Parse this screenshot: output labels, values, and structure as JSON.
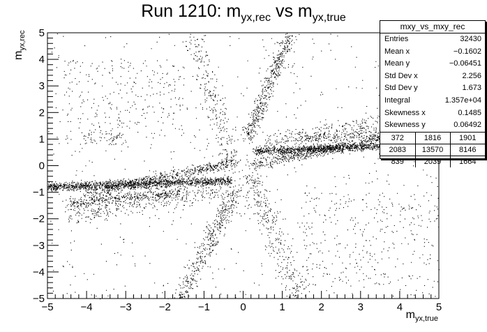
{
  "title": {
    "main": "Run 1210: m",
    "sub1": "yx,rec",
    "mid": " vs m",
    "sub2": "yx,true"
  },
  "axis_labels": {
    "x_main": "m",
    "x_sub": "yx,true",
    "y_main": "m",
    "y_sub": "yx,rec"
  },
  "stats": {
    "name": "mxy_vs_mxy_rec",
    "rows": [
      {
        "label": "Entries",
        "value": "32430"
      },
      {
        "label": "Mean x",
        "value": "−0.1602"
      },
      {
        "label": "Mean y",
        "value": "−0.06451"
      },
      {
        "label": "Std Dev x",
        "value": "2.256"
      },
      {
        "label": "Std Dev y",
        "value": "1.673"
      },
      {
        "label": "Integral",
        "value": "1.357e+04"
      },
      {
        "label": "Skewness x",
        "value": "0.1485"
      },
      {
        "label": "Skewness y",
        "value": "0.06492"
      }
    ],
    "overflow_grid": [
      [
        "372",
        "1816",
        "1901"
      ],
      [
        "2083",
        "13570",
        "8146"
      ],
      [
        "839",
        "2039",
        "1664"
      ]
    ]
  },
  "chart_data": {
    "type": "scatter",
    "xlim": [
      -5,
      5
    ],
    "ylim": [
      -5,
      5
    ],
    "x_ticks": [
      "−5",
      "−4",
      "−3",
      "−2",
      "−1",
      "0",
      "1",
      "2",
      "3",
      "4",
      "5"
    ],
    "y_ticks": [
      "−5",
      "−4",
      "−3",
      "−2",
      "−1",
      "0",
      "1",
      "2",
      "3",
      "4",
      "5"
    ],
    "grid": false,
    "marker_color": "#000000",
    "bands": [
      {
        "x": [
          -5.0,
          -0.3
        ],
        "y": [
          -0.8,
          -0.55
        ],
        "width": 0.08,
        "n": 1400
      },
      {
        "x": [
          -4.0,
          -0.2
        ],
        "y": [
          -1.05,
          0.15
        ],
        "width": 0.1,
        "n": 600
      },
      {
        "x": [
          -4.5,
          -1.5
        ],
        "y": [
          -1.4,
          -1.0
        ],
        "width": 0.1,
        "n": 400
      },
      {
        "x": [
          -4.5,
          -0.5
        ],
        "y": [
          -1.9,
          -0.9
        ],
        "width": 0.18,
        "n": 300
      },
      {
        "x": [
          0.3,
          4.5
        ],
        "y": [
          0.55,
          0.8
        ],
        "width": 0.07,
        "n": 1200
      },
      {
        "x": [
          0.3,
          4.0
        ],
        "y": [
          0.05,
          1.2
        ],
        "width": 0.1,
        "n": 600
      },
      {
        "x": [
          1.5,
          5.0
        ],
        "y": [
          1.0,
          1.4
        ],
        "width": 0.1,
        "n": 300
      },
      {
        "x": [
          0.5,
          4.5
        ],
        "y": [
          0.9,
          1.9
        ],
        "width": 0.18,
        "n": 300
      },
      {
        "x": [
          0.1,
          1.2
        ],
        "y": [
          1.0,
          5.0
        ],
        "width": 0.15,
        "n": 500
      },
      {
        "x": [
          0.1,
          1.4
        ],
        "y": [
          -0.1,
          -5.0
        ],
        "width": 0.25,
        "n": 350
      },
      {
        "x": [
          -0.2,
          -1.6
        ],
        "y": [
          -0.9,
          -5.0
        ],
        "width": 0.18,
        "n": 450
      },
      {
        "x": [
          -0.3,
          -1.3
        ],
        "y": [
          0.2,
          5.0
        ],
        "width": 0.25,
        "n": 250
      }
    ],
    "background": [
      {
        "x": [
          -5,
          5
        ],
        "y": [
          -5,
          5
        ],
        "n": 600
      },
      {
        "x": [
          -4.6,
          -1.5
        ],
        "y": [
          1.0,
          4.0
        ],
        "n": 250
      },
      {
        "x": [
          1.5,
          5.0
        ],
        "y": [
          -4.5,
          -1.0
        ],
        "n": 300
      },
      {
        "x": [
          -4.2,
          -3.0
        ],
        "y": [
          0.8,
          1.3
        ],
        "n": 60
      }
    ]
  }
}
